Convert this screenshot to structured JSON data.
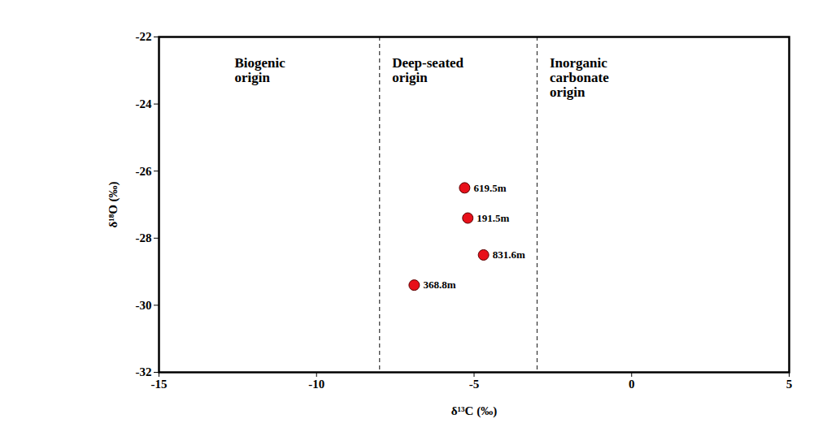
{
  "chart_data": {
    "type": "scatter",
    "x_label": "δ¹³C (‰)",
    "y_label": "δ¹⁸O (‰)",
    "xlim": [
      -15,
      5
    ],
    "ylim": [
      -32,
      -22
    ],
    "xticks": [
      -15,
      -10,
      -5,
      0,
      5
    ],
    "yticks": [
      -32,
      -30,
      -28,
      -26,
      -24,
      -22
    ],
    "color": "#e8101a",
    "marker": "circle",
    "points": [
      {
        "label": "619.5m",
        "x": -5.3,
        "y": -26.5
      },
      {
        "label": "191.5m",
        "x": -5.2,
        "y": -27.4
      },
      {
        "label": "831.6m",
        "x": -4.7,
        "y": -28.5
      },
      {
        "label": "368.8m",
        "x": -6.9,
        "y": -29.4
      }
    ],
    "dividers": [
      -8,
      -3
    ],
    "annotations": [
      {
        "text": "Biogenic\norigin",
        "x": -12.6,
        "y": -22.6
      },
      {
        "text": "Deep-seated\norigin",
        "x": -7.6,
        "y": -22.6
      },
      {
        "text": "Inorganic\ncarbonate\norigin",
        "x": -2.6,
        "y": -22.6
      }
    ]
  }
}
